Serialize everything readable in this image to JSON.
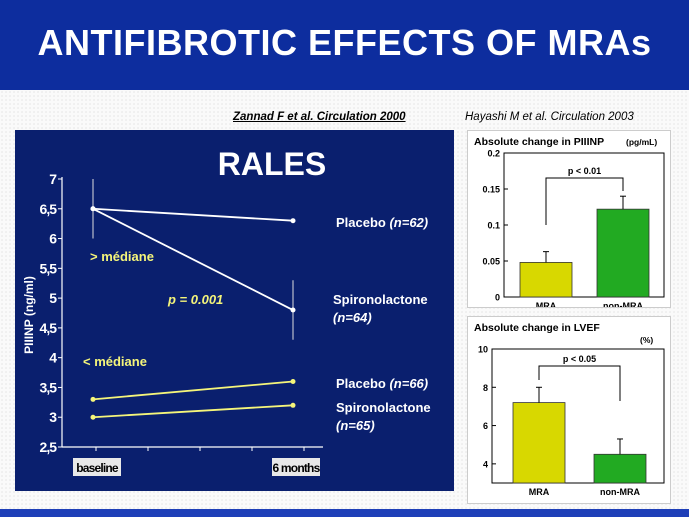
{
  "slide": {
    "title": "ANTIFIBROTIC EFFECTS OF MRAs",
    "citation_left": "Zannad F et al. Circulation 2000",
    "citation_right": "Hayashi M et al. Circulation 2003"
  },
  "colors": {
    "title_bar": "#0d2d9e",
    "panel_bg": "#0a1f6e",
    "yellow": "#f5f57a",
    "green": "#22aa22",
    "olive": "#d8d800"
  },
  "chart_data": [
    {
      "type": "line",
      "title": "RALES",
      "ylabel": "PIIINP (ng/ml)",
      "categories": [
        "baseline",
        "6 months"
      ],
      "ylim": [
        2.5,
        7
      ],
      "yticks": [
        "2,5",
        "3",
        "3,5",
        "4",
        "4,5",
        "5",
        "5,5",
        "6",
        "6,5",
        "7"
      ],
      "group_labels": [
        "> médiane",
        "< médiane"
      ],
      "p_label": "p = 0.001",
      "series": [
        {
          "name": "Placebo",
          "n": "(n=62)",
          "group": "> médiane",
          "values": [
            6.5,
            6.3
          ],
          "color": "#ffffff"
        },
        {
          "name": "Spironolactone",
          "n": "(n=64)",
          "group": "> médiane",
          "values": [
            6.5,
            4.8
          ],
          "color": "#ffffff"
        },
        {
          "name": "Placebo",
          "n": "(n=66)",
          "group": "< médiane",
          "values": [
            3.3,
            3.6
          ],
          "color": "#f5f57a"
        },
        {
          "name": "Spironolactone",
          "n": "(n=65)",
          "group": "< médiane",
          "values": [
            3.0,
            3.2
          ],
          "color": "#f5f57a"
        }
      ]
    },
    {
      "type": "bar",
      "title": "Absolute change in PIIINP",
      "unit": "(pg/mL)",
      "categories": [
        "MRA",
        "non-MRA"
      ],
      "values": [
        0.048,
        0.122
      ],
      "errors": [
        0.015,
        0.018
      ],
      "colors": [
        "#d8d800",
        "#22aa22"
      ],
      "ylim": [
        0,
        0.2
      ],
      "yticks": [
        "0",
        "0.05",
        "0.1",
        "0.15",
        "0.2"
      ],
      "annotation": "p < 0.01"
    },
    {
      "type": "bar",
      "title": "Absolute change in LVEF",
      "unit": "(%)",
      "categories": [
        "MRA",
        "non-MRA"
      ],
      "values": [
        7.2,
        4.5
      ],
      "errors": [
        0.8,
        0.8
      ],
      "colors": [
        "#d8d800",
        "#22aa22"
      ],
      "ylim": [
        3,
        10
      ],
      "yticks": [
        "4",
        "6",
        "8",
        "10"
      ],
      "annotation": "p < 0.05"
    }
  ]
}
